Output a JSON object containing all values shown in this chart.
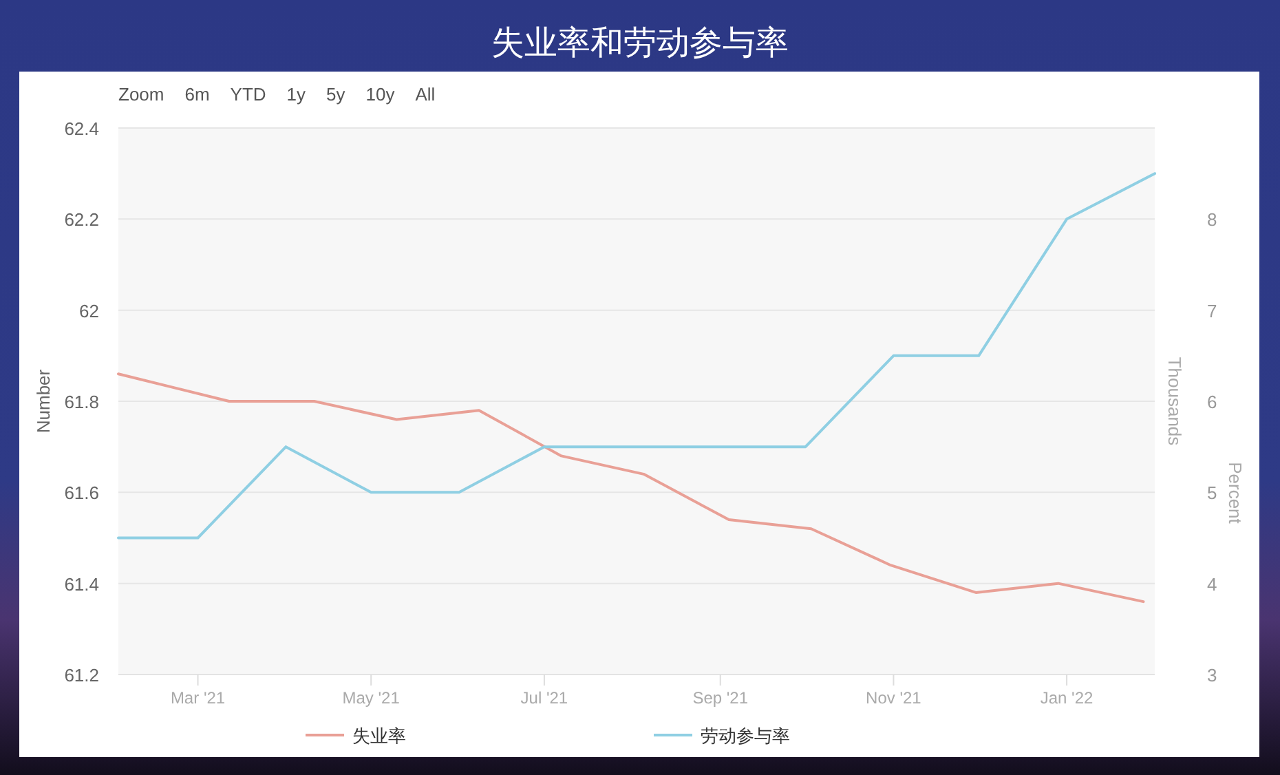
{
  "chart_data": {
    "type": "line",
    "title": "失业率和劳动参与率",
    "ylabel": "Number",
    "y2label": "Percent",
    "y3label": "Thousands",
    "annotations": [
      "Zoom",
      "6m",
      "YTD",
      "1y",
      "5y",
      "10y",
      "All"
    ],
    "xlim": [
      "2021-02-01",
      "2022-02-01"
    ],
    "xticks": [
      {
        "value": "2021-03",
        "label": "Mar '21"
      },
      {
        "value": "2021-05",
        "label": "May '21"
      },
      {
        "value": "2021-07",
        "label": "Jul '21"
      },
      {
        "value": "2021-09",
        "label": "Sep '21"
      },
      {
        "value": "2021-11",
        "label": "Nov '21"
      },
      {
        "value": "2022-01",
        "label": "Jan '22"
      }
    ],
    "ylim": [
      61.2,
      62.4
    ],
    "yticks": [
      61.2,
      61.4,
      61.6,
      61.8,
      62,
      62.2,
      62.4
    ],
    "y2lim": [
      3,
      9
    ],
    "y2ticks": [
      3,
      4,
      5,
      6,
      7,
      8
    ],
    "grid": "y",
    "legend": "bottom",
    "series": [
      {
        "name": "失业率",
        "color": "#e9a096",
        "axis": "y2",
        "x": [
          "2021-02-01",
          "2021-03-12",
          "2021-04-11",
          "2021-05-10",
          "2021-06-08",
          "2021-07-07",
          "2021-08-05",
          "2021-09-04",
          "2021-10-03",
          "2021-10-31",
          "2021-11-30",
          "2021-12-29",
          "2022-01-28"
        ],
        "values": [
          6.3,
          6.0,
          6.0,
          5.8,
          5.9,
          5.4,
          5.2,
          4.7,
          4.6,
          4.2,
          3.9,
          4.0,
          3.8
        ]
      },
      {
        "name": "劳动参与率",
        "color": "#8fcfe3",
        "x": [
          "2021-02-01",
          "2021-03-01",
          "2021-04-01",
          "2021-05-01",
          "2021-06-01",
          "2021-07-01",
          "2021-08-01",
          "2021-09-01",
          "2021-10-01",
          "2021-11-01",
          "2021-12-01",
          "2022-01-01",
          "2022-02-01"
        ],
        "values": [
          61.5,
          61.5,
          61.7,
          61.6,
          61.6,
          61.7,
          61.7,
          61.7,
          61.7,
          61.9,
          61.9,
          62.2,
          62.3
        ]
      }
    ]
  }
}
